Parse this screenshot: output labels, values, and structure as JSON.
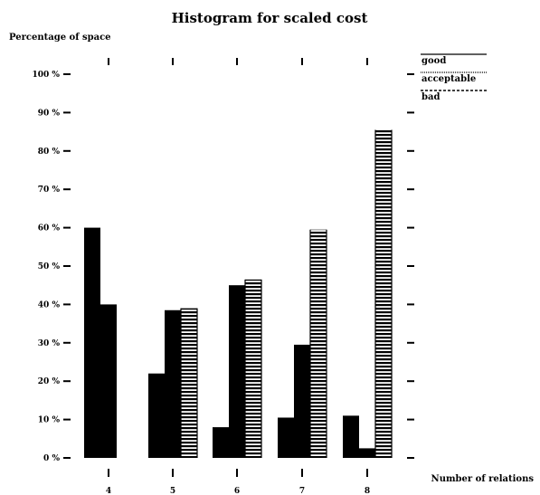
{
  "chart_data": {
    "type": "bar",
    "title": "Histogram for scaled cost",
    "ylabel": "Percentage of space",
    "xlabel": "Number of relations",
    "categories": [
      "4",
      "5",
      "6",
      "7",
      "8"
    ],
    "y_ticks": [
      "0 %",
      "10 %",
      "20 %",
      "30 %",
      "40 %",
      "50 %",
      "60 %",
      "70 %",
      "80 %",
      "90 %",
      "100 %"
    ],
    "ylim": [
      0,
      100
    ],
    "grid": false,
    "legend_position": "top-right",
    "series": [
      {
        "name": "good",
        "style": "solid",
        "values": [
          60,
          22,
          8,
          10.5,
          11
        ]
      },
      {
        "name": "acceptable",
        "style": "solid",
        "values": [
          40,
          38.5,
          45,
          29.5,
          2.5
        ]
      },
      {
        "name": "bad",
        "style": "dashed",
        "values": [
          0,
          39,
          46.5,
          59.5,
          85.5
        ]
      }
    ],
    "colors": {
      "bar": "#000000",
      "background": "#ffffff"
    }
  }
}
